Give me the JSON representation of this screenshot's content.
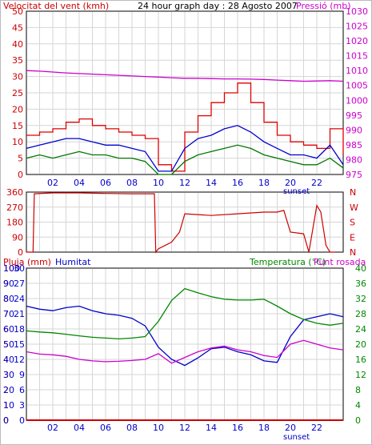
{
  "colors": {
    "wind": "#cc0000",
    "gust": "#dd0000",
    "wind_avg": "#0000cc",
    "wind_min": "#007700",
    "pressure": "#cc00cc",
    "direction": "#cc0000",
    "humidity": "#0000cc",
    "temperature": "#008800",
    "dewpoint": "#cc00cc",
    "rain": "#cc0000",
    "grid": "#d6d6d6",
    "frame": "#000000"
  },
  "top": {
    "left_label": "Velocitat del vent (kmh)",
    "title": "24 hour graph day : 28 Agosto 2007",
    "right_label": "Pressió (mb)",
    "left_ticks": [
      "0",
      "5",
      "10",
      "15",
      "20",
      "25",
      "30",
      "35",
      "40",
      "45",
      "50"
    ],
    "right_ticks": [
      "975",
      "980",
      "985",
      "990",
      "995",
      "1000",
      "1005",
      "1010",
      "1015",
      "1020",
      "1025",
      "1030"
    ],
    "hour_ticks": [
      "02",
      "04",
      "06",
      "08",
      "10",
      "12",
      "14",
      "16",
      "18",
      "20",
      "22"
    ],
    "sunset_label": "sunset"
  },
  "middle": {
    "left_ticks": [
      "0",
      "90",
      "180",
      "270",
      "360"
    ],
    "right_ticks": [
      "N",
      "E",
      "S",
      "W",
      "N"
    ]
  },
  "bottom": {
    "rain_label": "Pluja (mm)",
    "humidity_label": "Humitat",
    "temp_label": "Temperatura (°C)",
    "dew_label": "Punt rosada",
    "rain_ticks": [
      "0",
      "1",
      "2",
      "3",
      "4",
      "5",
      "6",
      "7",
      "8",
      "9",
      "10"
    ],
    "humidity_ticks": [
      "0",
      "10",
      "20",
      "30",
      "40",
      "50",
      "60",
      "70",
      "80",
      "90",
      "100"
    ],
    "hum_inner_ticks": [
      "0",
      "3",
      "6",
      "9",
      "12",
      "15",
      "18",
      "21",
      "24",
      "27",
      "30"
    ],
    "temp_ticks": [
      "0",
      "4",
      "8",
      "12",
      "16",
      "20",
      "24",
      "28",
      "32",
      "36",
      "40"
    ],
    "hour_ticks": [
      "02",
      "04",
      "06",
      "08",
      "10",
      "12",
      "14",
      "16",
      "18",
      "20",
      "22"
    ],
    "sunset_label": "sunset"
  },
  "chart_data": [
    {
      "type": "line",
      "title": "24 hour graph day : 28 Agosto 2007",
      "xlabel": "",
      "ylabel": "Velocitat del vent (kmh)",
      "y2label": "Pressió (mb)",
      "ylim": [
        0,
        50
      ],
      "y2lim": [
        975,
        1030
      ],
      "x": [
        0,
        1,
        2,
        3,
        4,
        5,
        6,
        7,
        8,
        9,
        10,
        11,
        12,
        13,
        14,
        15,
        16,
        17,
        18,
        19,
        20,
        21,
        22,
        23,
        24
      ],
      "series": [
        {
          "values": [
            12,
            13,
            14,
            16,
            17,
            15,
            14,
            13,
            12,
            11,
            3,
            1,
            13,
            18,
            22,
            25,
            28,
            22,
            16,
            12,
            10,
            9,
            8,
            14,
            6
          ]
        },
        {
          "values": [
            8,
            9,
            10,
            11,
            11,
            10,
            9,
            9,
            8,
            7,
            1,
            1,
            8,
            11,
            12,
            14,
            15,
            13,
            10,
            8,
            6,
            6,
            5,
            9,
            3
          ]
        },
        {
          "values": [
            5,
            6,
            5,
            6,
            7,
            6,
            6,
            5,
            5,
            4,
            0,
            0,
            4,
            6,
            7,
            8,
            9,
            8,
            6,
            5,
            4,
            3,
            3,
            5,
            2
          ]
        },
        {
          "values": [
            1010.0,
            1009.8,
            1009.5,
            1009.2,
            1009.0,
            1008.8,
            1008.6,
            1008.4,
            1008.2,
            1008.0,
            1007.8,
            1007.6,
            1007.4,
            1007.4,
            1007.3,
            1007.2,
            1007.2,
            1007.1,
            1007.0,
            1006.8,
            1006.6,
            1006.4,
            1006.5,
            1006.6,
            1006.4
          ]
        }
      ]
    },
    {
      "type": "line",
      "title": "",
      "ylim": [
        0,
        360
      ],
      "x": [
        0,
        0.5,
        0.6,
        2,
        4,
        6,
        8,
        9.7,
        9.8,
        10,
        10.5,
        11,
        11.6,
        12,
        14,
        16,
        18,
        19,
        19.5,
        20,
        21,
        21.4,
        22,
        22.3,
        22.7,
        23,
        23.4
      ],
      "series": [
        {
          "values": [
            0,
            0,
            350,
            355,
            355,
            352,
            350,
            350,
            0,
            20,
            40,
            60,
            120,
            230,
            220,
            230,
            240,
            240,
            250,
            120,
            110,
            0,
            280,
            240,
            40,
            0,
            0
          ]
        }
      ]
    },
    {
      "type": "line",
      "title": "",
      "ylabel": "Humitat",
      "y2label": "Temperatura (°C)",
      "ylim": [
        0,
        100
      ],
      "y2lim": [
        0,
        40
      ],
      "x": [
        0,
        1,
        2,
        3,
        4,
        5,
        6,
        7,
        8,
        9,
        10,
        11,
        12,
        13,
        14,
        15,
        16,
        17,
        18,
        19,
        20,
        21,
        22,
        23,
        24
      ],
      "series": [
        {
          "values": [
            75,
            73,
            72,
            74,
            75,
            72,
            70,
            69,
            67,
            62,
            48,
            40,
            36,
            41,
            47,
            48,
            45,
            43,
            39,
            38,
            55,
            66,
            68,
            70,
            68
          ]
        },
        {
          "values": [
            23.5,
            23.2,
            23.0,
            22.6,
            22.2,
            21.8,
            21.6,
            21.4,
            21.6,
            22.0,
            26.0,
            31.5,
            34.6,
            33.5,
            32.5,
            31.8,
            31.6,
            31.6,
            31.8,
            30.0,
            28.0,
            26.5,
            25.5,
            25.0,
            25.5
          ]
        },
        {
          "values": [
            18,
            17.4,
            17.2,
            16.8,
            16.0,
            15.6,
            15.4,
            15.5,
            15.7,
            16.0,
            17.5,
            15.0,
            16.5,
            18.0,
            19.0,
            19.5,
            18.5,
            18.0,
            17.0,
            16.5,
            20.0,
            21.0,
            20.0,
            19.0,
            18.5
          ]
        },
        {
          "values": [
            0,
            0,
            0,
            0,
            0,
            0,
            0,
            0,
            0,
            0,
            0,
            0,
            0,
            0,
            0,
            0,
            0,
            0,
            0,
            0,
            0,
            0,
            0,
            0,
            0
          ]
        }
      ]
    }
  ]
}
